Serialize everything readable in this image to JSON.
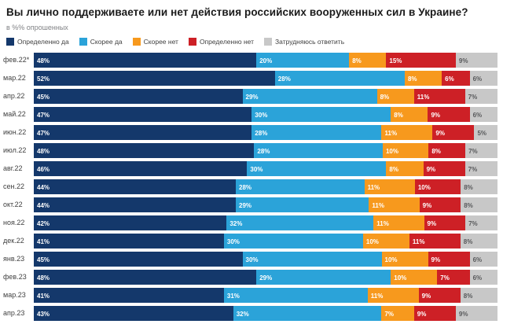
{
  "title": "Вы лично поддерживаете или нет действия российских вооруженных сил в Украине?",
  "subtitle": "в %% опрошенных",
  "colors": {
    "definitely_yes": "#14386b",
    "rather_yes": "#2ba3d9",
    "rather_no": "#f7991d",
    "definitely_no": "#cd2026",
    "hard_to_say": "#c8c8c8",
    "background": "#ffffff",
    "title_text": "#1a1a1a",
    "muted_text": "#808285",
    "gray_segment_label": "#58595b"
  },
  "chart_data": {
    "type": "bar",
    "stacked": true,
    "orientation": "horizontal",
    "unit": "%",
    "title": "Вы лично поддерживаете или нет действия российских вооруженных сил в Украине?",
    "subtitle": "в %% опрошенных",
    "legend_position": "top",
    "grid": false,
    "value_labels": "inside-left",
    "series_names": [
      "Определенно да",
      "Скорее да",
      "Скорее нет",
      "Определенно нет",
      "Затрудняюсь ответить"
    ],
    "series_colors": [
      "#14386b",
      "#2ba3d9",
      "#f7991d",
      "#cd2026",
      "#c8c8c8"
    ],
    "categories": [
      "фев.22*",
      "мар.22",
      "апр.22",
      "май.22",
      "июн.22",
      "июл.22",
      "авг.22",
      "сен.22",
      "окт.22",
      "ноя.22",
      "дек.22",
      "янв.23",
      "фев.23",
      "мар.23",
      "апр.23"
    ],
    "rows": [
      [
        48,
        20,
        8,
        15,
        9
      ],
      [
        52,
        28,
        8,
        6,
        6
      ],
      [
        45,
        29,
        8,
        11,
        7
      ],
      [
        47,
        30,
        8,
        9,
        6
      ],
      [
        47,
        28,
        11,
        9,
        5
      ],
      [
        48,
        28,
        10,
        8,
        7
      ],
      [
        46,
        30,
        8,
        9,
        7
      ],
      [
        44,
        28,
        11,
        10,
        8
      ],
      [
        44,
        29,
        11,
        9,
        8
      ],
      [
        42,
        32,
        11,
        9,
        7
      ],
      [
        41,
        30,
        10,
        11,
        8
      ],
      [
        45,
        30,
        10,
        9,
        6
      ],
      [
        48,
        29,
        10,
        7,
        6
      ],
      [
        41,
        31,
        11,
        9,
        8
      ],
      [
        43,
        32,
        7,
        9,
        9
      ]
    ]
  }
}
